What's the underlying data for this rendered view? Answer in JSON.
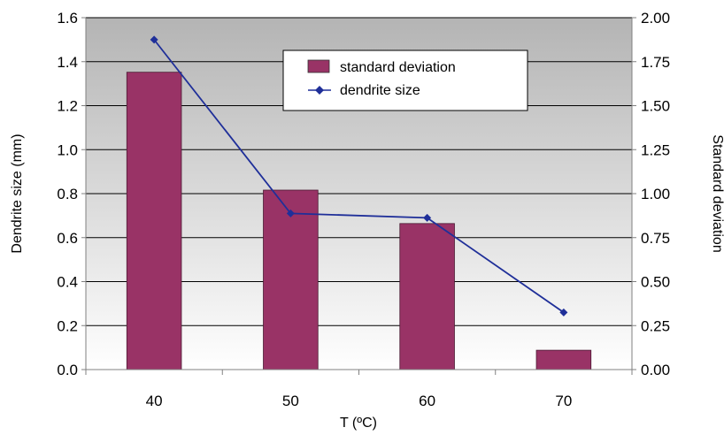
{
  "chart_data": {
    "type": "bar",
    "categories": [
      "40",
      "50",
      "60",
      "70"
    ],
    "series": [
      {
        "name": "standard deviation",
        "kind": "bar",
        "axis": "right",
        "color": "#993366",
        "values": [
          1.69,
          1.02,
          0.83,
          0.11
        ]
      },
      {
        "name": "dendrite size",
        "kind": "line",
        "axis": "left",
        "color": "#1f2f99",
        "values": [
          1.5,
          0.71,
          0.69,
          0.26
        ]
      }
    ],
    "xlabel": "T (ºC)",
    "ylabel": "Dendrite size (mm)",
    "y2label": "Standard deviation",
    "ylim": [
      0,
      1.6
    ],
    "y2lim": [
      0,
      2.0
    ],
    "yticks": [
      "0.0",
      "0.2",
      "0.4",
      "0.6",
      "0.8",
      "1.0",
      "1.2",
      "1.4",
      "1.6"
    ],
    "y2ticks": [
      "0.00",
      "0.25",
      "0.50",
      "0.75",
      "1.00",
      "1.25",
      "1.50",
      "1.75",
      "2.00"
    ],
    "grid": true,
    "legend_position": "top-right",
    "plot_background": "gradient gray to white"
  }
}
